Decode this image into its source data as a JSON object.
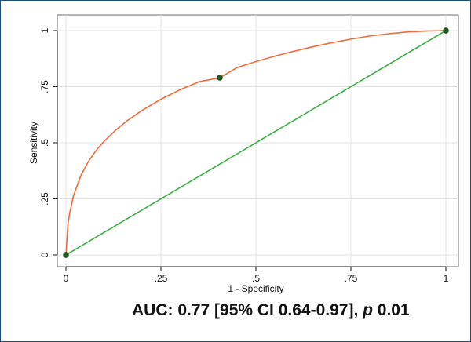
{
  "chart_data": {
    "type": "line",
    "title": "",
    "xlabel": "1 - Specificity",
    "ylabel": "Sensitivity",
    "xlim": [
      0,
      1
    ],
    "ylim": [
      0,
      1
    ],
    "xticks": [
      0,
      0.25,
      0.5,
      0.75,
      1
    ],
    "xtick_labels": [
      "0",
      ".25",
      ".5",
      ".75",
      "1"
    ],
    "yticks": [
      0,
      0.25,
      0.5,
      0.75,
      1
    ],
    "ytick_labels": [
      "0",
      ".25",
      ".5",
      ".75",
      "1"
    ],
    "grid": true,
    "series": [
      {
        "kind": "roc_curve",
        "color": "#f26b3a",
        "x": [
          0,
          0.005,
          0.01,
          0.02,
          0.04,
          0.06,
          0.08,
          0.1,
          0.13,
          0.16,
          0.2,
          0.25,
          0.3,
          0.35,
          0.405,
          0.45,
          0.5,
          0.55,
          0.6,
          0.65,
          0.7,
          0.75,
          0.8,
          0.85,
          0.9,
          0.95,
          1
        ],
        "y": [
          0,
          0.133,
          0.188,
          0.265,
          0.357,
          0.419,
          0.467,
          0.506,
          0.555,
          0.597,
          0.644,
          0.694,
          0.736,
          0.772,
          0.79,
          0.835,
          0.862,
          0.886,
          0.908,
          0.928,
          0.946,
          0.962,
          0.976,
          0.986,
          0.994,
          0.998,
          1
        ]
      },
      {
        "kind": "reference_line",
        "color": "#3cb043",
        "x": [
          0,
          1
        ],
        "y": [
          0,
          1
        ]
      }
    ],
    "points": [
      {
        "x": 0,
        "y": 0
      },
      {
        "x": 0.405,
        "y": 0.79
      },
      {
        "x": 1,
        "y": 1
      }
    ],
    "point_color": "#1b5e20",
    "annotation": {
      "prefix": "AUC: 0.77 [95% CI 0.64-0.97], ",
      "p_symbol": "p",
      "p_value": " 0.01"
    }
  }
}
